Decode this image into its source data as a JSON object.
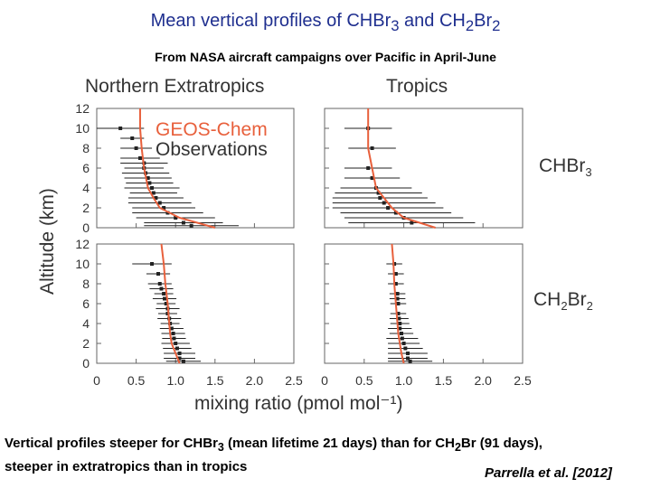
{
  "header": {
    "title_text": "Mean vertical profiles of CHBr",
    "title_sub1": "3",
    "title_mid": " and CH",
    "title_sub2": "2",
    "title_mid2": "Br",
    "title_sub3": "2",
    "subtitle": "From NASA aircraft campaigns over Pacific in April-June"
  },
  "panels": {
    "left_title": "Northern Extratropics",
    "right_title": "Tropics",
    "species_top": "CHBr",
    "species_top_sub": "3",
    "species_bottom_a": "CH",
    "species_bottom_sub_a": "2",
    "species_bottom_b": "Br",
    "species_bottom_sub_b": "2"
  },
  "axes": {
    "ylabel": "Altitude (km)",
    "xlabel": "mixing ratio (pmol mol⁻¹)"
  },
  "caption": {
    "line1_a": "Vertical profiles steeper for CHBr",
    "line1_sub": "3",
    "line1_b": " (mean lifetime 21 days) than for CH",
    "line1_sub2": "2",
    "line1_c": "Br (91 days),",
    "line2": "steeper in extratropics than in tropics",
    "citation": "Parrella et al. [2012]"
  },
  "colors": {
    "model": "#e8603c",
    "obs": "#222222",
    "title": "#1f2f8f"
  },
  "chart_data": {
    "type": "scatter",
    "title": "Mean vertical profiles of CHBr3 and CH2Br2",
    "xlabel": "mixing ratio (pmol mol⁻¹)",
    "ylabel": "Altitude (km)",
    "xlim": [
      0,
      2.5
    ],
    "ylim": [
      0,
      12
    ],
    "x_ticks": [
      "0",
      "0.5",
      "1.0",
      "1.5",
      "2.0",
      "2.5"
    ],
    "y_ticks": [
      "0",
      "2",
      "4",
      "6",
      "8",
      "10",
      "12"
    ],
    "legend": [
      "GEOS-Chem",
      "Observations"
    ],
    "panels": [
      {
        "name": "Northern Extratropics CHBr3",
        "model": {
          "alt": [
            0,
            1,
            2,
            3,
            4,
            6,
            8,
            10,
            12
          ],
          "value": [
            1.5,
            1.05,
            0.8,
            0.72,
            0.65,
            0.6,
            0.57,
            0.55,
            0.55
          ]
        },
        "obs": [
          {
            "alt": 10,
            "value": 0.3,
            "err": 0.3
          },
          {
            "alt": 9,
            "value": 0.45,
            "err": 0.15
          },
          {
            "alt": 8,
            "value": 0.5,
            "err": 0.2
          },
          {
            "alt": 7,
            "value": 0.55,
            "err": 0.25
          },
          {
            "alt": 6.5,
            "value": 0.6,
            "err": 0.3
          },
          {
            "alt": 6,
            "value": 0.6,
            "err": 0.25
          },
          {
            "alt": 5.5,
            "value": 0.62,
            "err": 0.3
          },
          {
            "alt": 5,
            "value": 0.65,
            "err": 0.3
          },
          {
            "alt": 4.5,
            "value": 0.67,
            "err": 0.3
          },
          {
            "alt": 4,
            "value": 0.7,
            "err": 0.35
          },
          {
            "alt": 3.5,
            "value": 0.72,
            "err": 0.3
          },
          {
            "alt": 3,
            "value": 0.75,
            "err": 0.35
          },
          {
            "alt": 2.5,
            "value": 0.8,
            "err": 0.4
          },
          {
            "alt": 2,
            "value": 0.85,
            "err": 0.4
          },
          {
            "alt": 1.5,
            "value": 0.9,
            "err": 0.45
          },
          {
            "alt": 1,
            "value": 1.0,
            "err": 0.5
          },
          {
            "alt": 0.5,
            "value": 1.1,
            "err": 0.5
          },
          {
            "alt": 0.2,
            "value": 1.2,
            "err": 0.6
          }
        ]
      },
      {
        "name": "Tropics CHBr3",
        "model": {
          "alt": [
            0,
            1,
            2,
            3,
            4,
            6,
            8,
            10,
            12
          ],
          "value": [
            1.4,
            1.0,
            0.85,
            0.75,
            0.65,
            0.6,
            0.55,
            0.55,
            0.55
          ]
        },
        "obs": [
          {
            "alt": 10,
            "value": 0.55,
            "err": 0.3
          },
          {
            "alt": 8,
            "value": 0.6,
            "err": 0.3
          },
          {
            "alt": 6,
            "value": 0.55,
            "err": 0.3
          },
          {
            "alt": 5,
            "value": 0.6,
            "err": 0.35
          },
          {
            "alt": 4,
            "value": 0.65,
            "err": 0.45
          },
          {
            "alt": 3.5,
            "value": 0.68,
            "err": 0.55
          },
          {
            "alt": 3,
            "value": 0.7,
            "err": 0.6
          },
          {
            "alt": 2.5,
            "value": 0.75,
            "err": 0.65
          },
          {
            "alt": 2,
            "value": 0.8,
            "err": 0.7
          },
          {
            "alt": 1.5,
            "value": 0.9,
            "err": 0.7
          },
          {
            "alt": 1,
            "value": 1.0,
            "err": 0.75
          },
          {
            "alt": 0.5,
            "value": 1.1,
            "err": 0.8
          }
        ]
      },
      {
        "name": "Northern Extratropics CH2Br2",
        "model": {
          "alt": [
            0,
            1,
            2,
            3,
            4,
            6,
            8,
            10,
            12
          ],
          "value": [
            1.05,
            1.0,
            0.95,
            0.93,
            0.92,
            0.9,
            0.87,
            0.85,
            0.82
          ]
        },
        "obs": [
          {
            "alt": 10,
            "value": 0.7,
            "err": 0.25
          },
          {
            "alt": 9,
            "value": 0.78,
            "err": 0.15
          },
          {
            "alt": 8,
            "value": 0.8,
            "err": 0.15
          },
          {
            "alt": 7.5,
            "value": 0.82,
            "err": 0.15
          },
          {
            "alt": 7,
            "value": 0.85,
            "err": 0.12
          },
          {
            "alt": 6.5,
            "value": 0.86,
            "err": 0.15
          },
          {
            "alt": 6,
            "value": 0.88,
            "err": 0.12
          },
          {
            "alt": 5.5,
            "value": 0.9,
            "err": 0.15
          },
          {
            "alt": 5,
            "value": 0.9,
            "err": 0.12
          },
          {
            "alt": 4.5,
            "value": 0.92,
            "err": 0.15
          },
          {
            "alt": 4,
            "value": 0.93,
            "err": 0.12
          },
          {
            "alt": 3.5,
            "value": 0.95,
            "err": 0.15
          },
          {
            "alt": 3,
            "value": 0.97,
            "err": 0.15
          },
          {
            "alt": 2.5,
            "value": 0.98,
            "err": 0.15
          },
          {
            "alt": 2,
            "value": 1.0,
            "err": 0.18
          },
          {
            "alt": 1.5,
            "value": 1.02,
            "err": 0.18
          },
          {
            "alt": 1,
            "value": 1.05,
            "err": 0.2
          },
          {
            "alt": 0.5,
            "value": 1.05,
            "err": 0.2
          },
          {
            "alt": 0.2,
            "value": 1.1,
            "err": 0.22
          }
        ]
      },
      {
        "name": "Tropics CH2Br2",
        "model": {
          "alt": [
            0,
            1,
            2,
            3,
            4,
            6,
            8,
            10,
            12
          ],
          "value": [
            1.0,
            0.97,
            0.95,
            0.93,
            0.92,
            0.9,
            0.88,
            0.87,
            0.85
          ]
        },
        "obs": [
          {
            "alt": 10,
            "value": 0.88,
            "err": 0.1
          },
          {
            "alt": 9,
            "value": 0.9,
            "err": 0.1
          },
          {
            "alt": 8,
            "value": 0.9,
            "err": 0.1
          },
          {
            "alt": 7,
            "value": 0.92,
            "err": 0.1
          },
          {
            "alt": 6.5,
            "value": 0.92,
            "err": 0.1
          },
          {
            "alt": 6,
            "value": 0.93,
            "err": 0.1
          },
          {
            "alt": 5,
            "value": 0.93,
            "err": 0.1
          },
          {
            "alt": 4.5,
            "value": 0.94,
            "err": 0.12
          },
          {
            "alt": 4,
            "value": 0.95,
            "err": 0.12
          },
          {
            "alt": 3.5,
            "value": 0.95,
            "err": 0.15
          },
          {
            "alt": 3,
            "value": 0.97,
            "err": 0.15
          },
          {
            "alt": 2.5,
            "value": 0.98,
            "err": 0.2
          },
          {
            "alt": 2,
            "value": 1.0,
            "err": 0.2
          },
          {
            "alt": 1.5,
            "value": 1.02,
            "err": 0.22
          },
          {
            "alt": 1,
            "value": 1.05,
            "err": 0.25
          },
          {
            "alt": 0.5,
            "value": 1.05,
            "err": 0.25
          },
          {
            "alt": 0.2,
            "value": 1.08,
            "err": 0.28
          }
        ]
      }
    ]
  }
}
